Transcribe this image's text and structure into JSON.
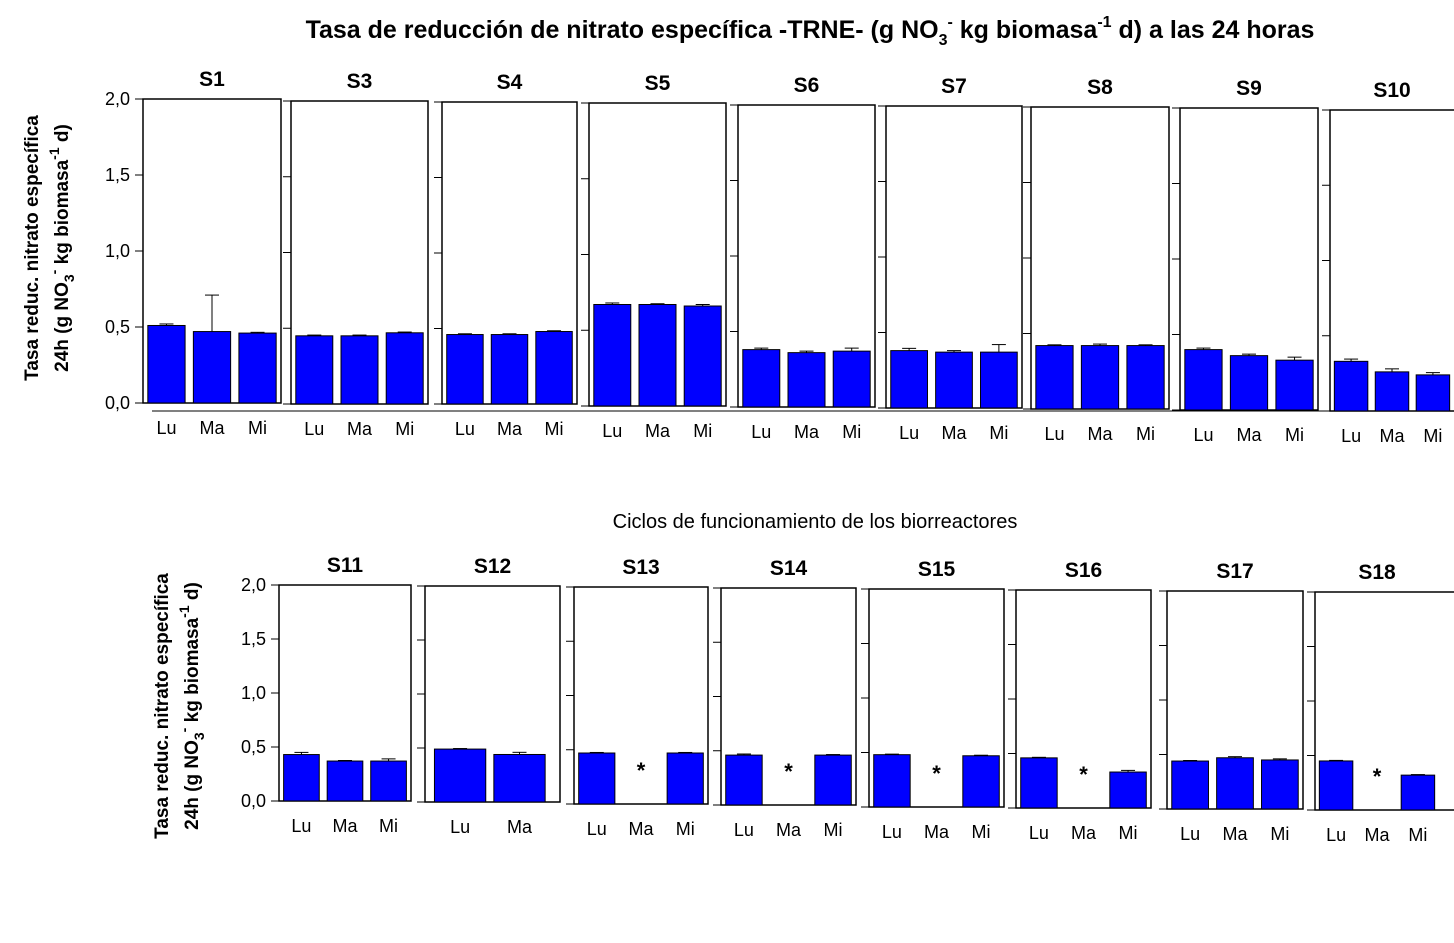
{
  "title": "Tasa de reducción de nitrato específica -TRNE- (g NO3- kg biomasa-1 d) a las 24 horas",
  "title_parts": {
    "t1": "Tasa de reducción de nitrato específica -TRNE- (g NO",
    "sub3": "3",
    "supminus": "-",
    "t2": " kg biomasa",
    "supm1": "-1",
    "t3": " d) a las 24 horas"
  },
  "ylabel_parts": {
    "line1": "Tasa reduc. nitrato específica",
    "a": "24h (g NO",
    "sub3": "3",
    "supminus": "-",
    "b": " kg biomasa",
    "supm1": "-1",
    "c": " d)"
  },
  "xlabel": "Ciclos de funcionamiento de los biorreactores",
  "y_ticks": [
    "0,0",
    "0,5",
    "1,0",
    "1,5",
    "2,0"
  ],
  "missing_marker": "*",
  "colors": {
    "bar": "#0000ff",
    "axis": "#000000"
  },
  "chart_data": {
    "type": "bar",
    "ylim": [
      0,
      2.0
    ],
    "grid": false,
    "panels": [
      {
        "name": "S1",
        "categories": [
          "Lu",
          "Ma",
          "Mi"
        ],
        "values": [
          0.51,
          0.47,
          0.46
        ],
        "errors": [
          0.01,
          0.24,
          0.005
        ]
      },
      {
        "name": "S3",
        "categories": [
          "Lu",
          "Ma",
          "Mi"
        ],
        "values": [
          0.45,
          0.45,
          0.47
        ],
        "errors": [
          0.005,
          0.005,
          0.005
        ]
      },
      {
        "name": "S4",
        "categories": [
          "Lu",
          "Ma",
          "Mi"
        ],
        "values": [
          0.46,
          0.46,
          0.48
        ],
        "errors": [
          0.005,
          0.005,
          0.005
        ]
      },
      {
        "name": "S5",
        "categories": [
          "Lu",
          "Ma",
          "Mi"
        ],
        "values": [
          0.67,
          0.67,
          0.66
        ],
        "errors": [
          0.01,
          0.005,
          0.01
        ]
      },
      {
        "name": "S6",
        "categories": [
          "Lu",
          "Ma",
          "Mi"
        ],
        "values": [
          0.38,
          0.36,
          0.37
        ],
        "errors": [
          0.01,
          0.01,
          0.02
        ]
      },
      {
        "name": "S7",
        "categories": [
          "Lu",
          "Ma",
          "Mi"
        ],
        "values": [
          0.38,
          0.37,
          0.37
        ],
        "errors": [
          0.015,
          0.01,
          0.05
        ]
      },
      {
        "name": "S8",
        "categories": [
          "Lu",
          "Ma",
          "Mi"
        ],
        "values": [
          0.42,
          0.42,
          0.42
        ],
        "errors": [
          0.005,
          0.01,
          0.005
        ]
      },
      {
        "name": "S9",
        "categories": [
          "Lu",
          "Ma",
          "Mi"
        ],
        "values": [
          0.4,
          0.36,
          0.33
        ],
        "errors": [
          0.01,
          0.01,
          0.02
        ]
      },
      {
        "name": "S10",
        "categories": [
          "Lu",
          "Ma",
          "Mi"
        ],
        "values": [
          0.33,
          0.26,
          0.24
        ],
        "errors": [
          0.015,
          0.02,
          0.015
        ]
      },
      {
        "name": "S11",
        "categories": [
          "Lu",
          "Ma",
          "Mi"
        ],
        "values": [
          0.43,
          0.37,
          0.37
        ],
        "errors": [
          0.02,
          0.005,
          0.02
        ]
      },
      {
        "name": "S12",
        "categories": [
          "Lu",
          "Ma"
        ],
        "values": [
          0.49,
          0.44
        ],
        "errors": [
          0.005,
          0.02
        ]
      },
      {
        "name": "S13",
        "categories": [
          "Lu",
          "Ma",
          "Mi"
        ],
        "values": [
          0.47,
          null,
          0.47
        ],
        "errors": [
          0.005,
          null,
          0.005
        ]
      },
      {
        "name": "S14",
        "categories": [
          "Lu",
          "Ma",
          "Mi"
        ],
        "values": [
          0.46,
          null,
          0.46
        ],
        "errors": [
          0.01,
          null,
          0.005
        ]
      },
      {
        "name": "S15",
        "categories": [
          "Lu",
          "Ma",
          "Mi"
        ],
        "values": [
          0.48,
          null,
          0.47
        ],
        "errors": [
          0.005,
          null,
          0.005
        ]
      },
      {
        "name": "S16",
        "categories": [
          "Lu",
          "Ma",
          "Mi"
        ],
        "values": [
          0.46,
          null,
          0.33
        ],
        "errors": [
          0.005,
          null,
          0.015
        ]
      },
      {
        "name": "S17",
        "categories": [
          "Lu",
          "Ma",
          "Mi"
        ],
        "values": [
          0.44,
          0.47,
          0.45
        ],
        "errors": [
          0.005,
          0.01,
          0.01
        ]
      },
      {
        "name": "S18",
        "categories": [
          "Lu",
          "Ma",
          "Mi"
        ],
        "values": [
          0.45,
          null,
          0.32
        ],
        "errors": [
          0.005,
          null,
          0.005
        ]
      }
    ]
  }
}
